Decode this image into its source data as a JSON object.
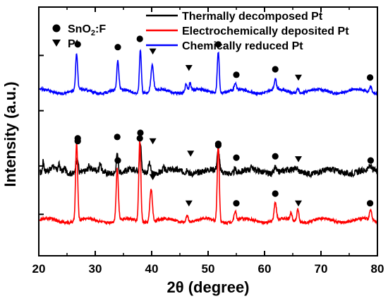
{
  "chart_data": {
    "type": "line",
    "title": "",
    "xlabel": "2θ (degree)",
    "ylabel": "Intensity (a.u.)",
    "xlim": [
      20,
      80
    ],
    "x_ticks": [
      "20",
      "30",
      "40",
      "50",
      "60",
      "70",
      "80"
    ],
    "y_ticks_shown": false,
    "grid": false,
    "legend_position": "top-right",
    "marker_legend": [
      {
        "symbol": "circle",
        "label_main": "SnO",
        "label_sub": "2",
        "label_tail": ":F"
      },
      {
        "symbol": "triangle-down",
        "label_main": "Pt",
        "label_sub": "",
        "label_tail": ""
      }
    ],
    "series": [
      {
        "name": "Thermally decomposed Pt",
        "color": "#000000",
        "baseline": 6.1,
        "noise": 0.22,
        "peaks": [
          {
            "x": 20.8,
            "h": 0.8,
            "w": 0.12
          },
          {
            "x": 22.5,
            "h": 0.35,
            "w": 0.15
          },
          {
            "x": 23.6,
            "h": 0.4,
            "w": 0.15
          },
          {
            "x": 24.6,
            "h": 0.3,
            "w": 0.15
          },
          {
            "x": 26.6,
            "h": 0.8,
            "w": 0.13
          },
          {
            "x": 26.9,
            "h": 0.9,
            "w": 0.13
          },
          {
            "x": 28.9,
            "h": 0.3,
            "w": 0.15
          },
          {
            "x": 30.9,
            "h": 0.6,
            "w": 0.13
          },
          {
            "x": 33.9,
            "h": 1.35,
            "w": 0.18
          },
          {
            "x": 38.0,
            "h": 1.95,
            "w": 0.16
          },
          {
            "x": 39.6,
            "h": 0.7,
            "w": 0.2
          },
          {
            "x": 42.1,
            "h": 0.25,
            "w": 0.15
          },
          {
            "x": 46.3,
            "h": 0.35,
            "w": 0.15
          },
          {
            "x": 51.8,
            "h": 1.4,
            "w": 0.2
          },
          {
            "x": 54.8,
            "h": 0.3,
            "w": 0.15
          },
          {
            "x": 57.8,
            "h": 0.25,
            "w": 0.15
          },
          {
            "x": 61.9,
            "h": 0.45,
            "w": 0.17
          },
          {
            "x": 65.7,
            "h": 0.2,
            "w": 0.15
          },
          {
            "x": 78.7,
            "h": 0.3,
            "w": 0.17
          }
        ],
        "markers": [
          {
            "x": 26.9,
            "symbol": "circle",
            "y": 8.3
          },
          {
            "x": 33.9,
            "symbol": "circle",
            "y": 8.6
          },
          {
            "x": 38.0,
            "symbol": "circle",
            "y": 8.9
          },
          {
            "x": 40.2,
            "symbol": "triangle-down",
            "y": 8.3
          },
          {
            "x": 46.9,
            "symbol": "triangle-down",
            "y": 7.4
          },
          {
            "x": 51.8,
            "symbol": "circle",
            "y": 8.0
          },
          {
            "x": 55.0,
            "symbol": "circle",
            "y": 7.1
          },
          {
            "x": 61.9,
            "symbol": "circle",
            "y": 7.2
          },
          {
            "x": 66.0,
            "symbol": "triangle-down",
            "y": 7.0
          },
          {
            "x": 78.8,
            "symbol": "circle",
            "y": 6.9
          }
        ]
      },
      {
        "name": "Electrochemically deposited Pt",
        "color": "#ff0000",
        "baseline": 2.55,
        "noise": 0.1,
        "peaks": [
          {
            "x": 26.7,
            "h": 5.7,
            "w": 0.18
          },
          {
            "x": 33.9,
            "h": 3.8,
            "w": 0.19
          },
          {
            "x": 37.9,
            "h": 5.9,
            "w": 0.18
          },
          {
            "x": 39.9,
            "h": 2.4,
            "w": 0.22
          },
          {
            "x": 46.3,
            "h": 0.5,
            "w": 0.2
          },
          {
            "x": 51.8,
            "h": 5.6,
            "w": 0.18
          },
          {
            "x": 54.8,
            "h": 0.7,
            "w": 0.18
          },
          {
            "x": 61.9,
            "h": 1.3,
            "w": 0.2
          },
          {
            "x": 64.7,
            "h": 0.5,
            "w": 0.18
          },
          {
            "x": 65.9,
            "h": 0.9,
            "w": 0.18
          },
          {
            "x": 78.8,
            "h": 0.7,
            "w": 0.2
          }
        ],
        "markers": [
          {
            "x": 26.9,
            "symbol": "circle",
            "y": 8.5
          },
          {
            "x": 34.0,
            "symbol": "circle",
            "y": 6.9
          },
          {
            "x": 37.9,
            "symbol": "circle",
            "y": 8.5
          },
          {
            "x": 40.2,
            "symbol": "triangle-down",
            "y": 5.7
          },
          {
            "x": 46.6,
            "symbol": "triangle-down",
            "y": 3.8
          },
          {
            "x": 51.8,
            "symbol": "circle",
            "y": 8.1
          },
          {
            "x": 55.0,
            "symbol": "circle",
            "y": 3.8
          },
          {
            "x": 61.9,
            "symbol": "circle",
            "y": 4.5
          },
          {
            "x": 66.0,
            "symbol": "triangle-down",
            "y": 3.8
          },
          {
            "x": 78.7,
            "symbol": "circle",
            "y": 3.8
          }
        ]
      },
      {
        "name": "Chemically reduced Pt",
        "color": "#0000ff",
        "baseline": 11.9,
        "noise": 0.09,
        "peaks": [
          {
            "x": 26.7,
            "h": 2.6,
            "w": 0.18
          },
          {
            "x": 34.0,
            "h": 2.1,
            "w": 0.18
          },
          {
            "x": 38.0,
            "h": 3.2,
            "w": 0.17
          },
          {
            "x": 40.1,
            "h": 1.9,
            "w": 0.22
          },
          {
            "x": 46.1,
            "h": 0.6,
            "w": 0.18
          },
          {
            "x": 46.8,
            "h": 0.6,
            "w": 0.18
          },
          {
            "x": 51.8,
            "h": 3.0,
            "w": 0.18
          },
          {
            "x": 54.8,
            "h": 0.5,
            "w": 0.18
          },
          {
            "x": 61.9,
            "h": 0.75,
            "w": 0.2
          },
          {
            "x": 65.9,
            "h": 0.35,
            "w": 0.18
          },
          {
            "x": 78.8,
            "h": 0.45,
            "w": 0.2
          }
        ],
        "markers": [
          {
            "x": 26.9,
            "symbol": "circle",
            "y": 15.3
          },
          {
            "x": 34.0,
            "symbol": "circle",
            "y": 15.1
          },
          {
            "x": 37.9,
            "symbol": "circle",
            "y": 15.7
          },
          {
            "x": 40.2,
            "symbol": "triangle-down",
            "y": 14.8
          },
          {
            "x": 46.6,
            "symbol": "triangle-down",
            "y": 13.6
          },
          {
            "x": 51.8,
            "symbol": "circle",
            "y": 15.3
          },
          {
            "x": 55.0,
            "symbol": "circle",
            "y": 13.1
          },
          {
            "x": 61.9,
            "symbol": "circle",
            "y": 13.5
          },
          {
            "x": 66.0,
            "symbol": "triangle-down",
            "y": 12.9
          },
          {
            "x": 78.7,
            "symbol": "circle",
            "y": 12.9
          }
        ]
      }
    ]
  }
}
